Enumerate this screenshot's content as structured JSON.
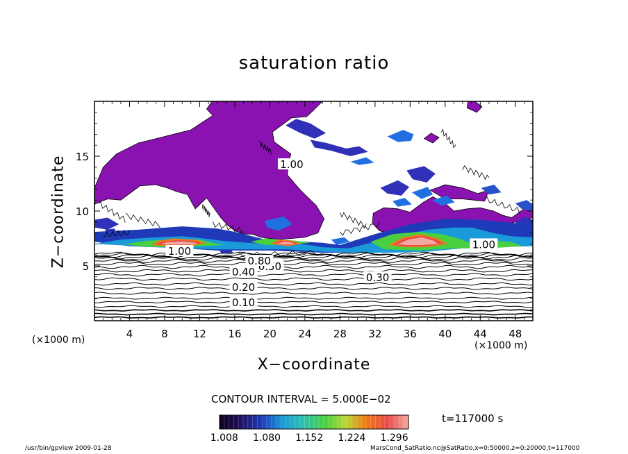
{
  "chart_data": {
    "type": "contour",
    "title": "saturation ratio",
    "xlabel": "X−coordinate",
    "ylabel": "Z−coordinate",
    "x_unit_left": "(×1000 m)",
    "x_unit_right": "(×1000 m)",
    "xlim": [
      0,
      50
    ],
    "ylim": [
      0,
      20
    ],
    "x_ticks": [
      4,
      8,
      12,
      16,
      20,
      24,
      28,
      32,
      36,
      40,
      44,
      48
    ],
    "y_ticks": [
      5,
      10,
      15
    ],
    "contour_interval_label": "CONTOUR INTERVAL = 5.000E−02",
    "time_label": "t=117000 s",
    "contour_labels": [
      {
        "text": "0.10",
        "x": 17.0,
        "z": 1.7
      },
      {
        "text": "0.20",
        "x": 17.0,
        "z": 3.1
      },
      {
        "text": "0.30",
        "x": 32.3,
        "z": 4.0
      },
      {
        "text": "0.40",
        "x": 17.0,
        "z": 4.5
      },
      {
        "text": "0.50",
        "x": 20.0,
        "z": 5.0
      },
      {
        "text": "0.80",
        "x": 18.8,
        "z": 5.5
      },
      {
        "text": "1.00",
        "x": 9.7,
        "z": 6.4
      },
      {
        "text": "1.00",
        "x": 22.5,
        "z": 14.3
      },
      {
        "text": "1.00",
        "x": 44.4,
        "z": 7.0
      }
    ],
    "colorbar": {
      "ticks": [
        1.008,
        1.08,
        1.152,
        1.224,
        1.296
      ],
      "tick_labels": [
        "1.008",
        "1.080",
        "1.152",
        "1.224",
        "1.296"
      ],
      "range": [
        1.0,
        1.32
      ],
      "colors": [
        "#10001a",
        "#1f1060",
        "#1e3ab8",
        "#1a9ad8",
        "#30c0b0",
        "#48d040",
        "#b8d838",
        "#f07818",
        "#e84a4a",
        "#f4aaa0"
      ]
    },
    "supersaturated_color": "#8a12b0",
    "grid": false,
    "legend": "colorbar-bottom"
  },
  "footer": {
    "left": "/usr/bin/gpview   2009-01-28",
    "right": "MarsCond_SatRatio.nc@SatRatio,x=0:50000,z=0:20000,t=117000"
  }
}
